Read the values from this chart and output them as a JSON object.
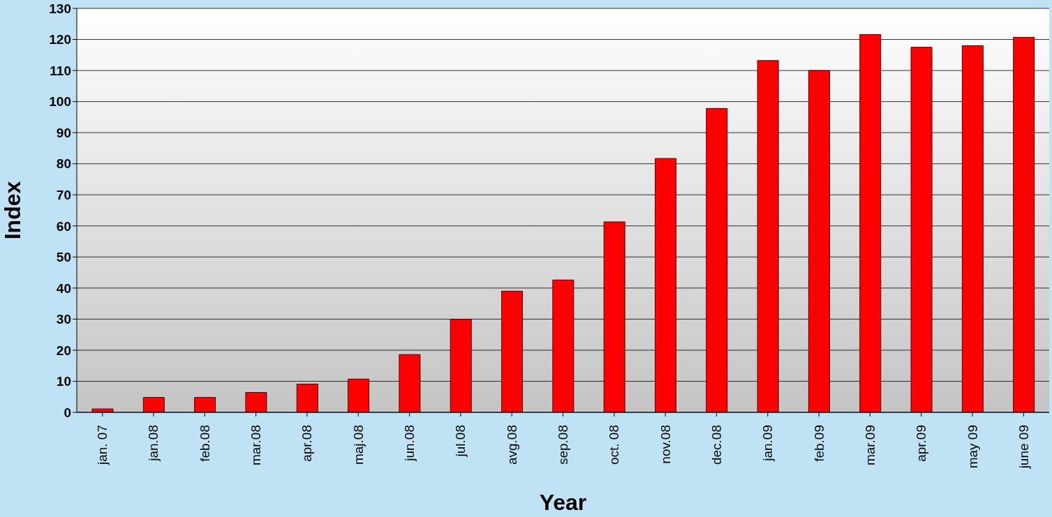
{
  "chart_data": {
    "type": "bar",
    "xlabel": "Year",
    "ylabel": "Index",
    "categories": [
      "jan. 07",
      "jan.08",
      "feb.08",
      "mar.08",
      "apr.08",
      "maj.08",
      "jun.08",
      "jul.08",
      "avg.08",
      "sep.08",
      "oct. 08",
      "nov.08",
      "dec.08",
      "jan.09",
      "feb.09",
      "mar.09",
      "apr.09",
      "may 09",
      "june 09"
    ],
    "values": [
      1.1,
      4.8,
      4.8,
      6.4,
      9.1,
      10.7,
      18.6,
      29.9,
      39.0,
      42.6,
      61.3,
      81.7,
      97.8,
      113.2,
      110.0,
      121.6,
      117.5,
      118.0,
      120.7
    ],
    "color": "#ff0000",
    "ylim": [
      0,
      130
    ],
    "yticks": [
      0,
      10,
      20,
      30,
      40,
      50,
      60,
      70,
      80,
      90,
      100,
      110,
      120,
      130
    ],
    "grid": "y"
  }
}
